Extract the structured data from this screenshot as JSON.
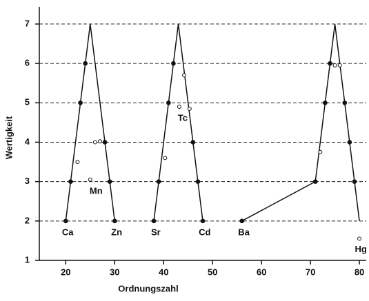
{
  "chart_data": {
    "type": "line",
    "x_label": "Ordnungszahl",
    "y_label": "Wertigkeit",
    "xlim": [
      14.6,
      81.4
    ],
    "ylim": [
      1,
      7.4
    ],
    "xticks": [
      20,
      30,
      40,
      50,
      60,
      70,
      80
    ],
    "yticks": [
      1,
      2,
      3,
      4,
      5,
      6,
      7
    ],
    "grid": true,
    "series": [
      {
        "style": "line",
        "color": "#111111",
        "x": [
          20,
          25,
          30
        ],
        "values": [
          2,
          7,
          2
        ]
      },
      {
        "style": "line",
        "color": "#111111",
        "x": [
          38,
          43,
          48
        ],
        "values": [
          2,
          7,
          2
        ]
      },
      {
        "style": "line",
        "color": "#111111",
        "x": [
          56,
          71,
          75,
          80
        ],
        "values": [
          2,
          3,
          7,
          2
        ]
      },
      {
        "style": "filled",
        "color": "#111111",
        "x": [
          20,
          21,
          23,
          24,
          28,
          29,
          30,
          38,
          39,
          41,
          42,
          46,
          47,
          48,
          56,
          71,
          73,
          74,
          77,
          78,
          79
        ],
        "values": [
          2,
          3,
          5,
          6,
          4,
          3,
          2,
          2,
          3,
          5,
          6,
          4,
          3,
          2,
          2,
          3,
          5,
          6,
          5,
          4,
          3
        ]
      },
      {
        "style": "open",
        "color": "#111111",
        "x": [
          22.4,
          25,
          26,
          27,
          40.3,
          43.2,
          44.2,
          45.3,
          72,
          75,
          76,
          80
        ],
        "values": [
          3.5,
          3.05,
          4,
          4.02,
          3.6,
          4.9,
          5.7,
          4.85,
          3.75,
          5.95,
          5.95,
          1.55
        ]
      }
    ],
    "annotations": [
      {
        "text": "Ca",
        "x": 20.4,
        "y": 1.7
      },
      {
        "text": "Zn",
        "x": 30.4,
        "y": 1.7
      },
      {
        "text": "Sr",
        "x": 38.4,
        "y": 1.7
      },
      {
        "text": "Cd",
        "x": 48.4,
        "y": 1.7
      },
      {
        "text": "Ba",
        "x": 56.4,
        "y": 1.7
      },
      {
        "text": "Hg",
        "x": 80.3,
        "y": 1.27
      },
      {
        "text": "Mn",
        "x": 26.2,
        "y": 2.75
      },
      {
        "text": "Tc",
        "x": 43.9,
        "y": 4.6
      }
    ]
  }
}
